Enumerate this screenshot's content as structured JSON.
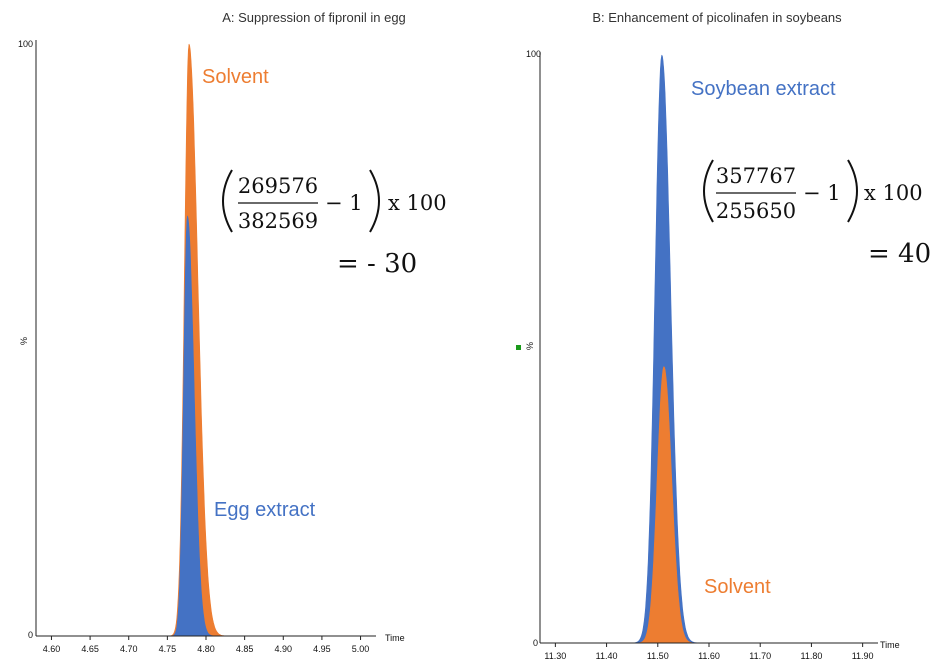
{
  "chart_data": [
    {
      "type": "area",
      "title": "A: Suppression of fipronil in egg",
      "xlabel": "Time",
      "ylabel": "%",
      "xlim": [
        4.58,
        5.02
      ],
      "ylim": [
        0,
        100
      ],
      "x_ticks": [
        "4.60",
        "4.65",
        "4.70",
        "4.75",
        "4.80",
        "4.85",
        "4.90",
        "4.95",
        "5.00"
      ],
      "y_ticks": [
        "0",
        "100"
      ],
      "series": [
        {
          "name": "Solvent",
          "color": "#ED7D31",
          "peak_x": 4.778,
          "peak_y": 100
        },
        {
          "name": "Egg extract",
          "color": "#4472C4",
          "peak_x": 4.776,
          "peak_y": 71
        }
      ],
      "annotation": {
        "numerator": "269576",
        "denominator": "382569",
        "minus": "− 1",
        "times": "x 100",
        "result": "= - 30"
      }
    },
    {
      "type": "area",
      "title": "B: Enhancement of picolinafen in soybeans",
      "xlabel": "Time",
      "ylabel": "%",
      "xlim": [
        11.27,
        11.93
      ],
      "ylim": [
        0,
        100
      ],
      "x_ticks": [
        "11.30",
        "11.40",
        "11.50",
        "11.60",
        "11.70",
        "11.80",
        "11.90"
      ],
      "y_ticks": [
        "0",
        "100"
      ],
      "series": [
        {
          "name": "Soybean extract",
          "color": "#4472C4",
          "peak_x": 11.508,
          "peak_y": 100
        },
        {
          "name": "Solvent",
          "color": "#ED7D31",
          "peak_x": 11.512,
          "peak_y": 47
        }
      ],
      "annotation": {
        "numerator": "357767",
        "denominator": "255650",
        "minus": "− 1",
        "times": "x 100",
        "result": "= 40"
      }
    }
  ]
}
